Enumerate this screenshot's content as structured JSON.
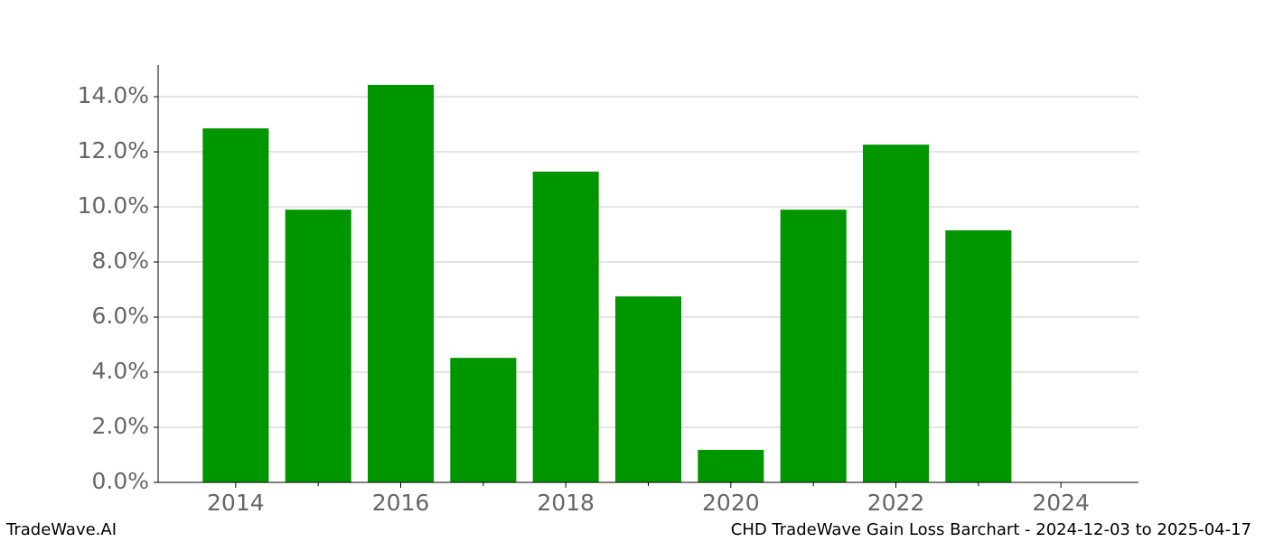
{
  "chart_data": {
    "type": "bar",
    "color": "#009600",
    "x": [
      2014,
      2015,
      2016,
      2017,
      2018,
      2019,
      2020,
      2021,
      2022,
      2023,
      2024
    ],
    "values": [
      12.85,
      9.9,
      14.43,
      4.52,
      11.28,
      6.75,
      1.18,
      9.9,
      12.26,
      9.15,
      0
    ],
    "xlim": [
      2013.06,
      2024.94
    ],
    "xticks": [
      2014,
      2016,
      2018,
      2020,
      2022,
      2024
    ],
    "xminor": [
      2015,
      2017,
      2019,
      2021,
      2023
    ],
    "ylim": [
      0,
      15.15
    ],
    "yticks": [
      {
        "value": 0,
        "label": "0.0%"
      },
      {
        "value": 2,
        "label": "2.0%"
      },
      {
        "value": 4,
        "label": "4.0%"
      },
      {
        "value": 6,
        "label": "6.0%"
      },
      {
        "value": 8,
        "label": "8.0%"
      },
      {
        "value": 10,
        "label": "10.0%"
      },
      {
        "value": 12,
        "label": "12.0%"
      },
      {
        "value": 14,
        "label": "14.0%"
      }
    ],
    "grid": true
  },
  "footer": {
    "left": "TradeWave.AI",
    "right": "CHD TradeWave Gain Loss Barchart - 2024-12-03 to 2025-04-17"
  }
}
